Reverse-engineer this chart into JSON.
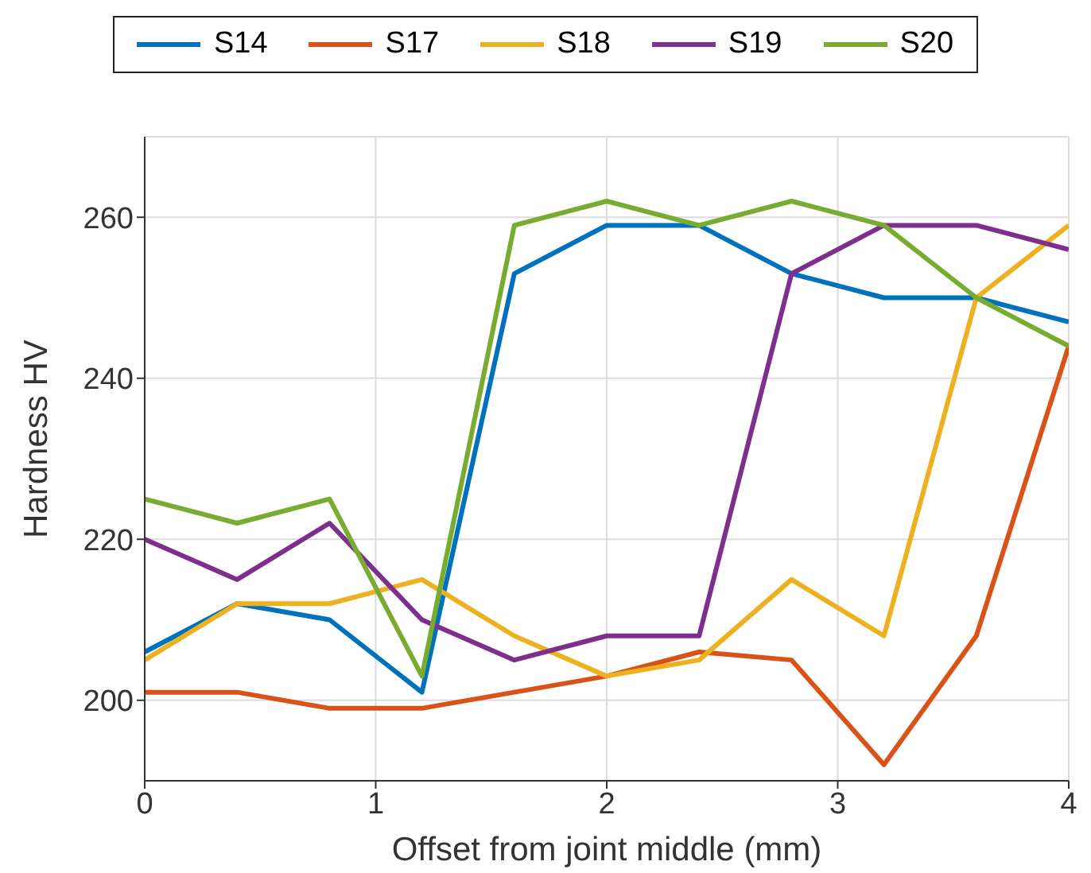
{
  "chart_data": {
    "type": "line",
    "xlabel": "Offset from joint middle (mm)",
    "ylabel": "Hardness HV",
    "x": [
      0,
      0.4,
      0.8,
      1.2,
      1.6,
      2,
      2.4,
      2.8,
      3.2,
      3.6,
      4
    ],
    "series": [
      {
        "name": "S14",
        "color": "#0072bd",
        "values": [
          206,
          212,
          210,
          201,
          253,
          259,
          259,
          253,
          250,
          250,
          247
        ]
      },
      {
        "name": "S17",
        "color": "#d95319",
        "values": [
          201,
          201,
          199,
          199,
          201,
          203,
          206,
          205,
          192,
          208,
          244
        ]
      },
      {
        "name": "S18",
        "color": "#edb120",
        "values": [
          205,
          212,
          212,
          215,
          208,
          203,
          205,
          215,
          208,
          250,
          259
        ]
      },
      {
        "name": "S19",
        "color": "#7e2f8e",
        "values": [
          220,
          215,
          222,
          210,
          205,
          208,
          208,
          253,
          259,
          259,
          256
        ]
      },
      {
        "name": "S20",
        "color": "#77ac30",
        "values": [
          225,
          222,
          225,
          203,
          259,
          262,
          259,
          262,
          259,
          250,
          244
        ]
      }
    ],
    "xlim": [
      0,
      4
    ],
    "xticks": [
      0,
      1,
      2,
      3,
      4
    ],
    "ylim": [
      190,
      270
    ],
    "yticks": [
      200,
      220,
      240,
      260
    ],
    "grid": true,
    "legend": "top",
    "marker": "none",
    "line_style": "solid"
  }
}
